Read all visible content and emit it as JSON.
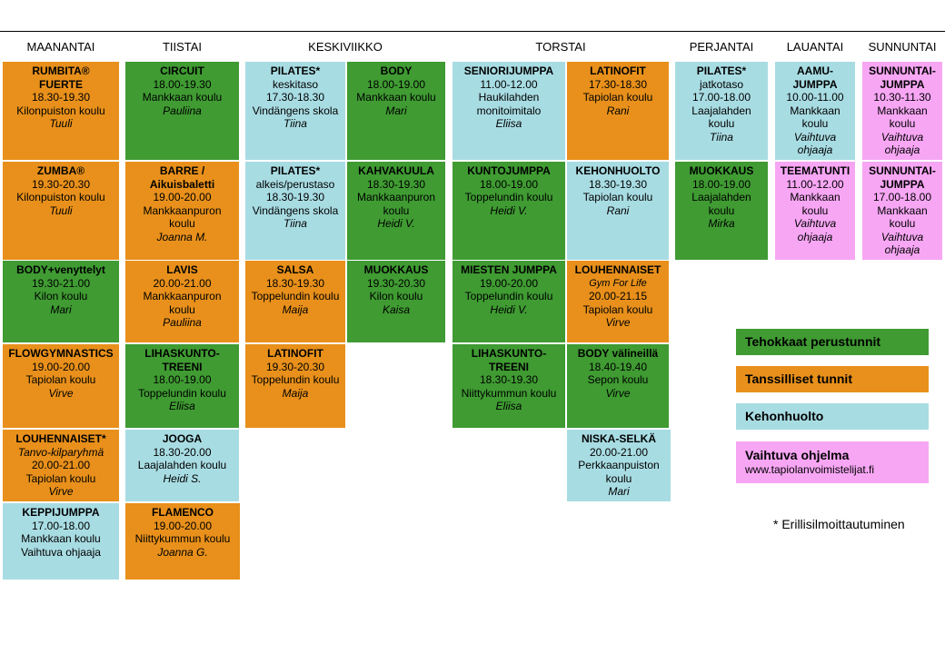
{
  "colors": {
    "green": "#3f9b32",
    "orange": "#e8901b",
    "blue": "#a8dce3",
    "pink": "#f7a6f4"
  },
  "days": [
    "MAANANTAI",
    "TIISTAI",
    "KESKIVIIKKO",
    "TORSTAI",
    "PERJANTAI",
    "LAUANTAI",
    "SUNNUNTAI"
  ],
  "schedule": {
    "mon1": [
      "RUMBITA®",
      "FUERTE",
      "18.30-19.30",
      "Kilonpuiston koulu",
      "Tuuli"
    ],
    "mon2": [
      "ZUMBA®",
      "19.30-20.30",
      "Kilonpuiston koulu",
      "Tuuli"
    ],
    "mon3": [
      "BODY+venyttelyt",
      "19.30-21.00",
      "Kilon koulu",
      "Mari"
    ],
    "mon4": [
      "FLOWGYMNASTICS",
      "19.00-20.00",
      "Tapiolan koulu",
      "Virve"
    ],
    "mon5": [
      "LOUHENNAISET*",
      "Tanvo-kilparyhmä",
      "20.00-21.00",
      "Tapiolan koulu",
      "Virve"
    ],
    "mon6": [
      "KEPPIJUMPPA",
      "17.00-18.00",
      "Mankkaan koulu",
      "Vaihtuva ohjaaja"
    ],
    "tue1": [
      "CIRCUIT",
      "18.00-19.30",
      "Mankkaan koulu",
      "Pauliina"
    ],
    "tue2": [
      "BARRE /",
      "Aikuisbaletti",
      "19.00-20.00",
      "Mankkaanpuron",
      "koulu",
      "Joanna M."
    ],
    "tue3": [
      "LAVIS",
      "20.00-21.00",
      "Mankkaanpuron",
      "koulu",
      "Pauliina"
    ],
    "tue4": [
      "LIHASKUNTO-",
      "TREENI",
      "18.00-19.00",
      "Toppelundin koulu",
      "Eliisa"
    ],
    "tue5": [
      "JOOGA",
      "18.30-20.00",
      "Laajalahden koulu",
      "Heidi S."
    ],
    "tue6": [
      "FLAMENCO",
      "19.00-20.00",
      "Niittykummun koulu",
      "Joanna G."
    ],
    "wedA1": [
      "PILATES*",
      "keskitaso",
      "17.30-18.30",
      "Vindängens skola",
      "Tiina"
    ],
    "wedA2": [
      "PILATES*",
      "alkeis/perustaso",
      "18.30-19.30",
      "Vindängens skola",
      "Tiina"
    ],
    "wedA3": [
      "SALSA",
      "18.30-19.30",
      "Toppelundin koulu",
      "Maija"
    ],
    "wedA4": [
      "LATINOFIT",
      "19.30-20.30",
      "Toppelundin koulu",
      "Maija"
    ],
    "wedB1": [
      "BODY",
      "18.00-19.00",
      "Mankkaan koulu",
      "Mari"
    ],
    "wedB2": [
      "KAHVAKUULA",
      "18.30-19.30",
      "Mankkaanpuron",
      "koulu",
      "Heidi V."
    ],
    "wedB3": [
      "MUOKKAUS",
      "19.30-20.30",
      "Kilon koulu",
      "Kaisa"
    ],
    "thuA1": [
      "SENIORIJUMPPA",
      "11.00-12.00",
      "Haukilahden",
      "monitoimitalo",
      "Eliisa"
    ],
    "thuA2": [
      "KUNTOJUMPPA",
      "18.00-19.00",
      "Toppelundin koulu",
      "Heidi V."
    ],
    "thuA3": [
      "MIESTEN  JUMPPA",
      "19.00-20.00",
      "Toppelundin koulu",
      "Heidi V."
    ],
    "thuA4": [
      "LIHASKUNTO-",
      "TREENI",
      "18.30-19.30",
      "Niittykummun koulu",
      "Eliisa"
    ],
    "thuB1": [
      "LATINOFIT",
      "17.30-18.30",
      "Tapiolan koulu",
      "Rani"
    ],
    "thuB2": [
      "KEHONHUOLTO",
      "18.30-19.30",
      "Tapiolan koulu",
      "Rani"
    ],
    "thuB3": [
      "LOUHENNAISET",
      "Gym For Life",
      "20.00-21.15",
      "Tapiolan koulu",
      "Virve"
    ],
    "thuB4": [
      "BODY  välineillä",
      "18.40-19.40",
      "Sepon koulu",
      "Virve"
    ],
    "thuB5": [
      "NISKA-SELKÄ",
      "20.00-21.00",
      "Perkkaanpuiston",
      "koulu",
      "Mari"
    ],
    "fri1": [
      "PILATES*",
      "jatkotaso",
      "17.00-18.00",
      "Laajalahden",
      "koulu",
      "Tiina"
    ],
    "fri2": [
      "MUOKKAUS",
      "18.00-19.00",
      "Laajalahden",
      "koulu",
      "Mirka"
    ],
    "sat1": [
      "AAMU-",
      "JUMPPA",
      "10.00-11.00",
      "Mankkaan",
      "koulu",
      "Vaihtuva",
      "ohjaaja"
    ],
    "sat2": [
      "TEEMATUNTI",
      "11.00-12.00",
      "Mankkaan",
      "koulu",
      "Vaihtuva",
      "ohjaaja"
    ],
    "sun1": [
      "SUNNUNTAI-",
      "JUMPPA",
      "10.30-11.30",
      "Mankkaan",
      "koulu",
      "Vaihtuva",
      "ohjaaja"
    ],
    "sun2": [
      "SUNNUNTAI-",
      "JUMPPA",
      "17.00-18.00",
      "Mankkaan",
      "koulu",
      "Vaihtuva",
      "ohjaaja"
    ]
  },
  "legend": {
    "green": "Tehokkaat perustunnit",
    "orange": "Tanssilliset tunnit",
    "blue": "Kehonhuolto",
    "pink": "Vaihtuva ohjelma",
    "pink_url": "www.tapiolanvoimistelijat.fi"
  },
  "note": "* Erillisilmoittautuminen"
}
